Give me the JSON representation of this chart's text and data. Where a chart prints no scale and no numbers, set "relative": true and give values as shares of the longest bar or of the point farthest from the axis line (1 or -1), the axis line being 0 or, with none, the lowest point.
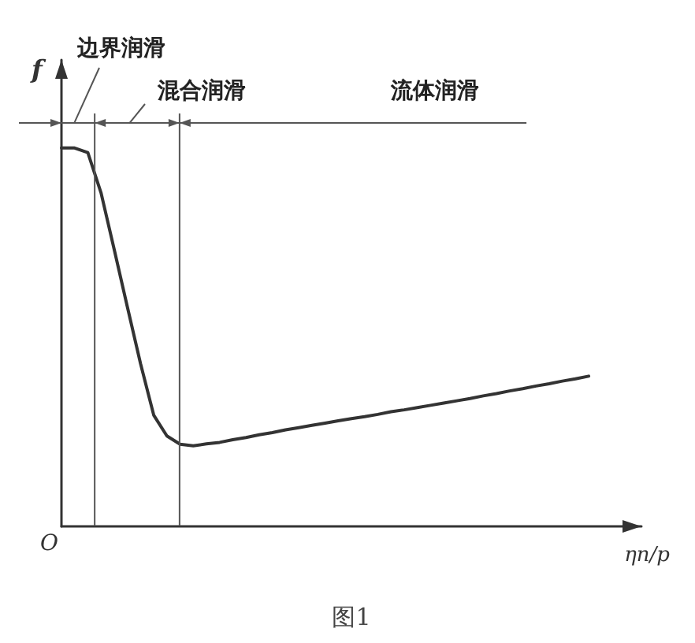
{
  "chart_data": {
    "type": "line",
    "relative": true,
    "color": "#333333",
    "marker": "none",
    "ylabel": "f",
    "xlabel": "ηn/p",
    "categories": [
      null,
      null,
      null,
      null,
      null,
      null,
      null,
      null,
      null,
      null,
      null,
      null,
      null,
      null,
      null,
      null,
      null,
      null,
      null,
      null,
      null,
      null,
      null,
      null,
      null,
      null,
      null,
      null,
      null,
      null,
      null,
      null,
      null,
      null,
      null,
      null,
      null,
      null,
      null,
      null,
      null
    ],
    "values": [
      1,
      1,
      0.988,
      0.882,
      0.732,
      0.58,
      0.43,
      0.294,
      0.239,
      0.217,
      0.213,
      0.218,
      0.222,
      0.229,
      0.235,
      0.242,
      0.248,
      0.255,
      0.261,
      0.267,
      0.273,
      0.279,
      0.285,
      0.29,
      0.296,
      0.303,
      0.308,
      0.314,
      0.32,
      0.326,
      0.332,
      0.338,
      0.345,
      0.351,
      0.358,
      0.364,
      0.371,
      0.377,
      0.384,
      0.39,
      0.397
    ],
    "annotations": [
      "边界润滑",
      "混合润滑",
      "流体润滑",
      "O",
      "图1"
    ]
  }
}
